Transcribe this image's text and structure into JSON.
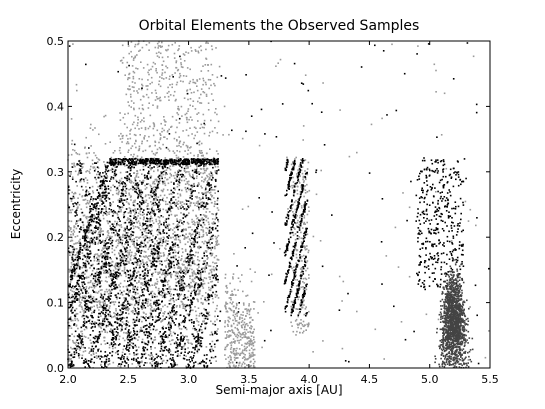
{
  "chart_data": {
    "type": "scatter",
    "title": "Orbital Elements the Observed Samples",
    "xlabel": "Semi-major axis [AU]",
    "ylabel": "Eccentricity",
    "xlim": [
      2.0,
      5.5
    ],
    "ylim": [
      0.0,
      0.5
    ],
    "x_ticks": [
      2.0,
      2.5,
      3.0,
      3.5,
      4.0,
      4.5,
      5.0,
      5.5
    ],
    "y_ticks": [
      0.0,
      0.1,
      0.2,
      0.3,
      0.4,
      0.5
    ],
    "x_tick_labels": [
      "2.0",
      "2.5",
      "3.0",
      "3.5",
      "4.0",
      "4.5",
      "5.0",
      "5.5"
    ],
    "y_tick_labels": [
      "0.0",
      "0.1",
      "0.2",
      "0.3",
      "0.4",
      "0.5"
    ],
    "grid": false,
    "legend": "none",
    "colors": {
      "light_series": "#9a9a9a",
      "dark_series": "#000000",
      "trojan_series": "#444444"
    },
    "series": [
      {
        "color": "#9a9a9a",
        "regions": [
          {
            "x_range": [
              2.0,
              3.25
            ],
            "e_range": [
              0.0,
              0.45
            ],
            "density": "very high",
            "count": 2600
          },
          {
            "x_range": [
              2.5,
              3.25
            ],
            "e_range": [
              0.0,
              0.55
            ],
            "density": "high",
            "count": 600
          },
          {
            "x_range": [
              3.3,
              3.55
            ],
            "e_range": [
              0.0,
              0.15
            ],
            "density": "medium",
            "count": 350
          },
          {
            "x_range": [
              3.85,
              4.0
            ],
            "e_range": [
              0.05,
              0.32
            ],
            "density": "medium",
            "count": 250
          },
          {
            "x_range": [
              2.0,
              5.5
            ],
            "e_range": [
              0.0,
              0.5
            ],
            "density": "sparse",
            "count": 120
          }
        ]
      },
      {
        "color": "#000000",
        "regions": [
          {
            "x_range": [
              2.0,
              3.25
            ],
            "e_range": [
              0.0,
              0.32
            ],
            "pattern": "diagonal bands",
            "count": 3000
          },
          {
            "x_range": [
              2.35,
              3.25
            ],
            "e_range": [
              0.31,
              0.32
            ],
            "pattern": "upper cutoff line",
            "count": 400
          },
          {
            "x_range": [
              3.8,
              3.98
            ],
            "e_range": [
              0.08,
              0.32
            ],
            "pattern": "diagonal bands",
            "count": 500
          },
          {
            "x_range": [
              4.85,
              5.3
            ],
            "e_range": [
              0.12,
              0.32
            ],
            "pattern": "scattered",
            "count": 400
          },
          {
            "x_range": [
              2.0,
              5.5
            ],
            "e_range": [
              0.0,
              0.5
            ],
            "density": "sparse",
            "count": 120
          }
        ]
      },
      {
        "color": "#444444",
        "regions": [
          {
            "x_range": [
              5.05,
              5.35
            ],
            "e_range": [
              0.0,
              0.18
            ],
            "density": "high",
            "center": [
              5.2,
              0.07
            ],
            "count": 1400
          }
        ]
      }
    ]
  }
}
